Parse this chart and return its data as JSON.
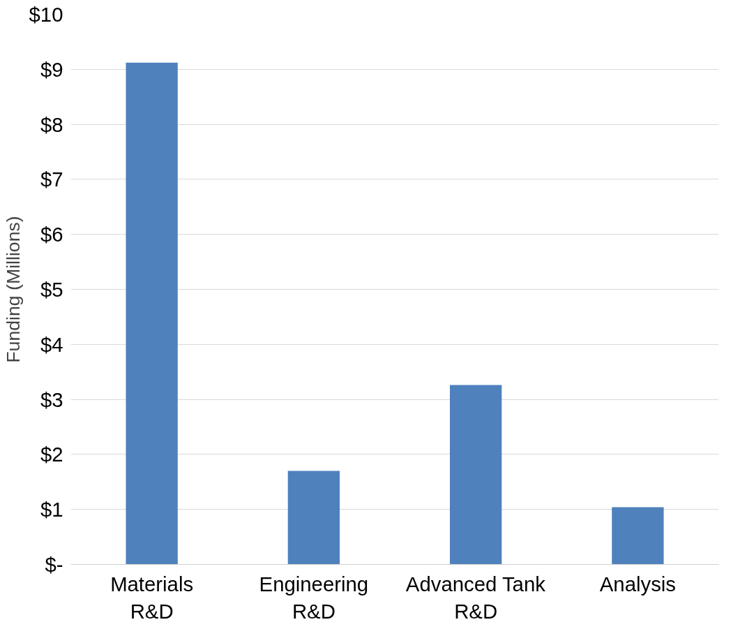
{
  "chart_data": {
    "type": "bar",
    "ylabel": "Funding (Millions)",
    "categories": [
      "Materials R&D",
      "Engineering R&D",
      "Advanced Tank R&D",
      "Analysis"
    ],
    "values": [
      9.12,
      1.7,
      3.26,
      1.04
    ],
    "color": "#4f81bd",
    "ylim": [
      0,
      10
    ],
    "yticks": [
      {
        "value": 0,
        "label": "$-"
      },
      {
        "value": 1,
        "label": "$1"
      },
      {
        "value": 2,
        "label": "$2"
      },
      {
        "value": 3,
        "label": "$3"
      },
      {
        "value": 4,
        "label": "$4"
      },
      {
        "value": 5,
        "label": "$5"
      },
      {
        "value": 6,
        "label": "$6"
      },
      {
        "value": 7,
        "label": "$7"
      },
      {
        "value": 8,
        "label": "$8"
      },
      {
        "value": 9,
        "label": "$9"
      },
      {
        "value": 10,
        "label": "$10"
      }
    ],
    "grid": "y"
  }
}
